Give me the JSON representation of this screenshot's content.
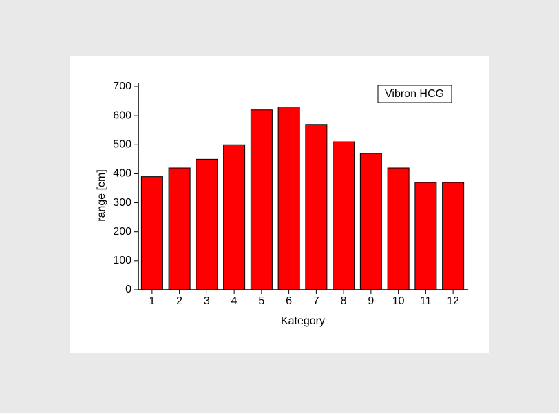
{
  "chart_data": {
    "type": "bar",
    "x_label": "Kategory",
    "y_label": "range [cm]",
    "categories": [
      "1",
      "2",
      "3",
      "4",
      "5",
      "6",
      "7",
      "8",
      "9",
      "10",
      "11",
      "12"
    ],
    "series": [
      {
        "name": "Vibron HCG",
        "color": "#ff0000",
        "values": [
          390,
          420,
          450,
          500,
          620,
          630,
          570,
          510,
          470,
          420,
          370,
          370
        ]
      }
    ],
    "ylim": [
      0,
      700
    ],
    "yticks": [
      0,
      100,
      200,
      300,
      400,
      500,
      600,
      700
    ],
    "legend": "top-right"
  }
}
